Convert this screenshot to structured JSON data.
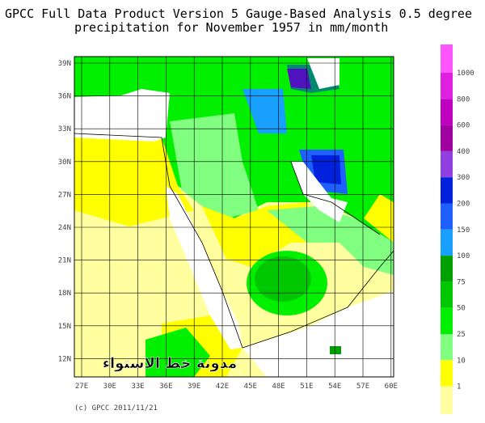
{
  "title": [
    "GPCC Full Data Product Version 5 Gauge-Based Analysis 0.5 degree",
    "precipitation for November  1957 in mm/month"
  ],
  "map": {
    "lat_labels": [
      "39N",
      "36N",
      "33N",
      "30N",
      "27N",
      "24N",
      "21N",
      "18N",
      "15N",
      "12N"
    ],
    "lon_labels": [
      "27E",
      "30E",
      "33E",
      "36E",
      "39E",
      "42E",
      "45E",
      "48E",
      "51E",
      "54E",
      "57E",
      "60E"
    ],
    "watermark": "مدونة خط الاستواء"
  },
  "legend": {
    "top_color": "#ff55ff",
    "levels": [
      {
        "label": "1000",
        "color": "#e020e0"
      },
      {
        "label": "800",
        "color": "#c000c0"
      },
      {
        "label": "600",
        "color": "#a000a0"
      },
      {
        "label": "400",
        "color": "#9040e0"
      },
      {
        "label": "300",
        "color": "#0022dd"
      },
      {
        "label": "200",
        "color": "#1e60ff"
      },
      {
        "label": "150",
        "color": "#18a0ff"
      },
      {
        "label": "100",
        "color": "#00a000"
      },
      {
        "label": "75",
        "color": "#00c800"
      },
      {
        "label": "50",
        "color": "#00f000"
      },
      {
        "label": "25",
        "color": "#80ff80"
      },
      {
        "label": "10",
        "color": "#ffff00"
      },
      {
        "label": "1",
        "color": "#ffffa0"
      }
    ]
  },
  "credit": "(c) GPCC 2011/11/21"
}
